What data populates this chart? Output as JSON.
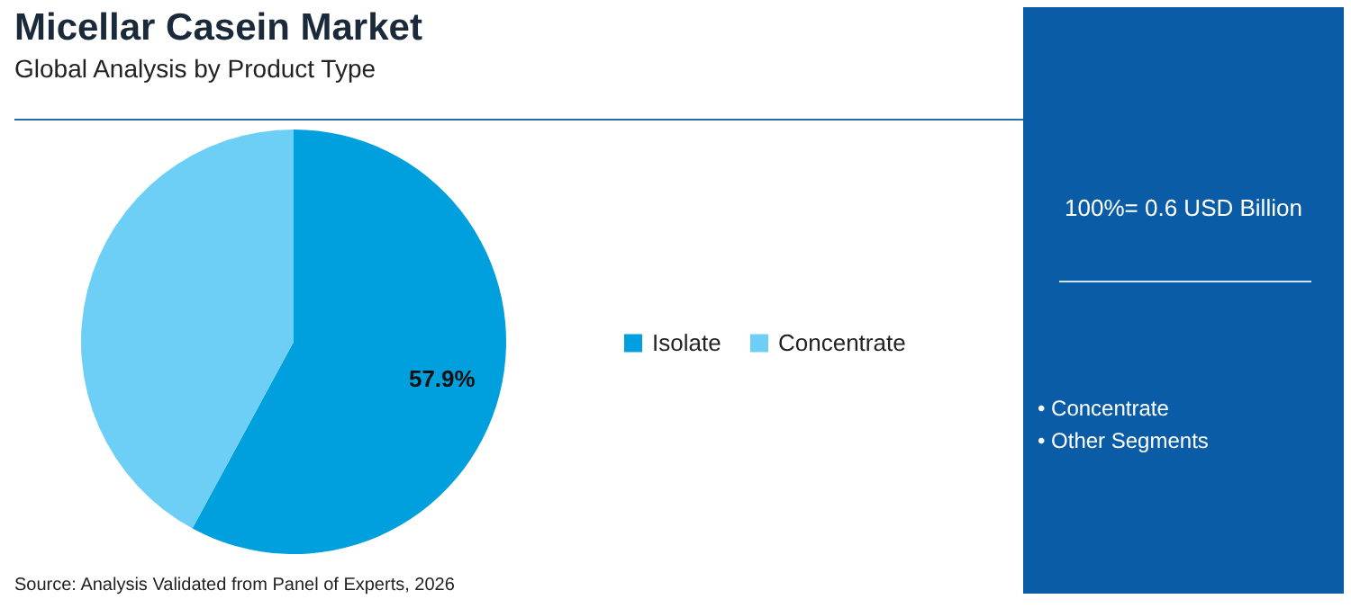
{
  "chart_data": {
    "type": "pie",
    "title": "Micellar Casein Market",
    "subtitle": "Global Analysis by Product Type",
    "categories": [
      "Isolate",
      "Concentrate"
    ],
    "values": [
      57.9,
      42.1
    ],
    "colors": [
      "#00a0de",
      "#6dcff6"
    ],
    "value_labels": [
      "57.9%",
      null
    ],
    "legend": "right",
    "annotations": [
      "100%= 0.6 USD Billion",
      "• Concentrate",
      "• Other Segments",
      "Source: Analysis Validated from Panel of Experts, 2026"
    ]
  }
}
